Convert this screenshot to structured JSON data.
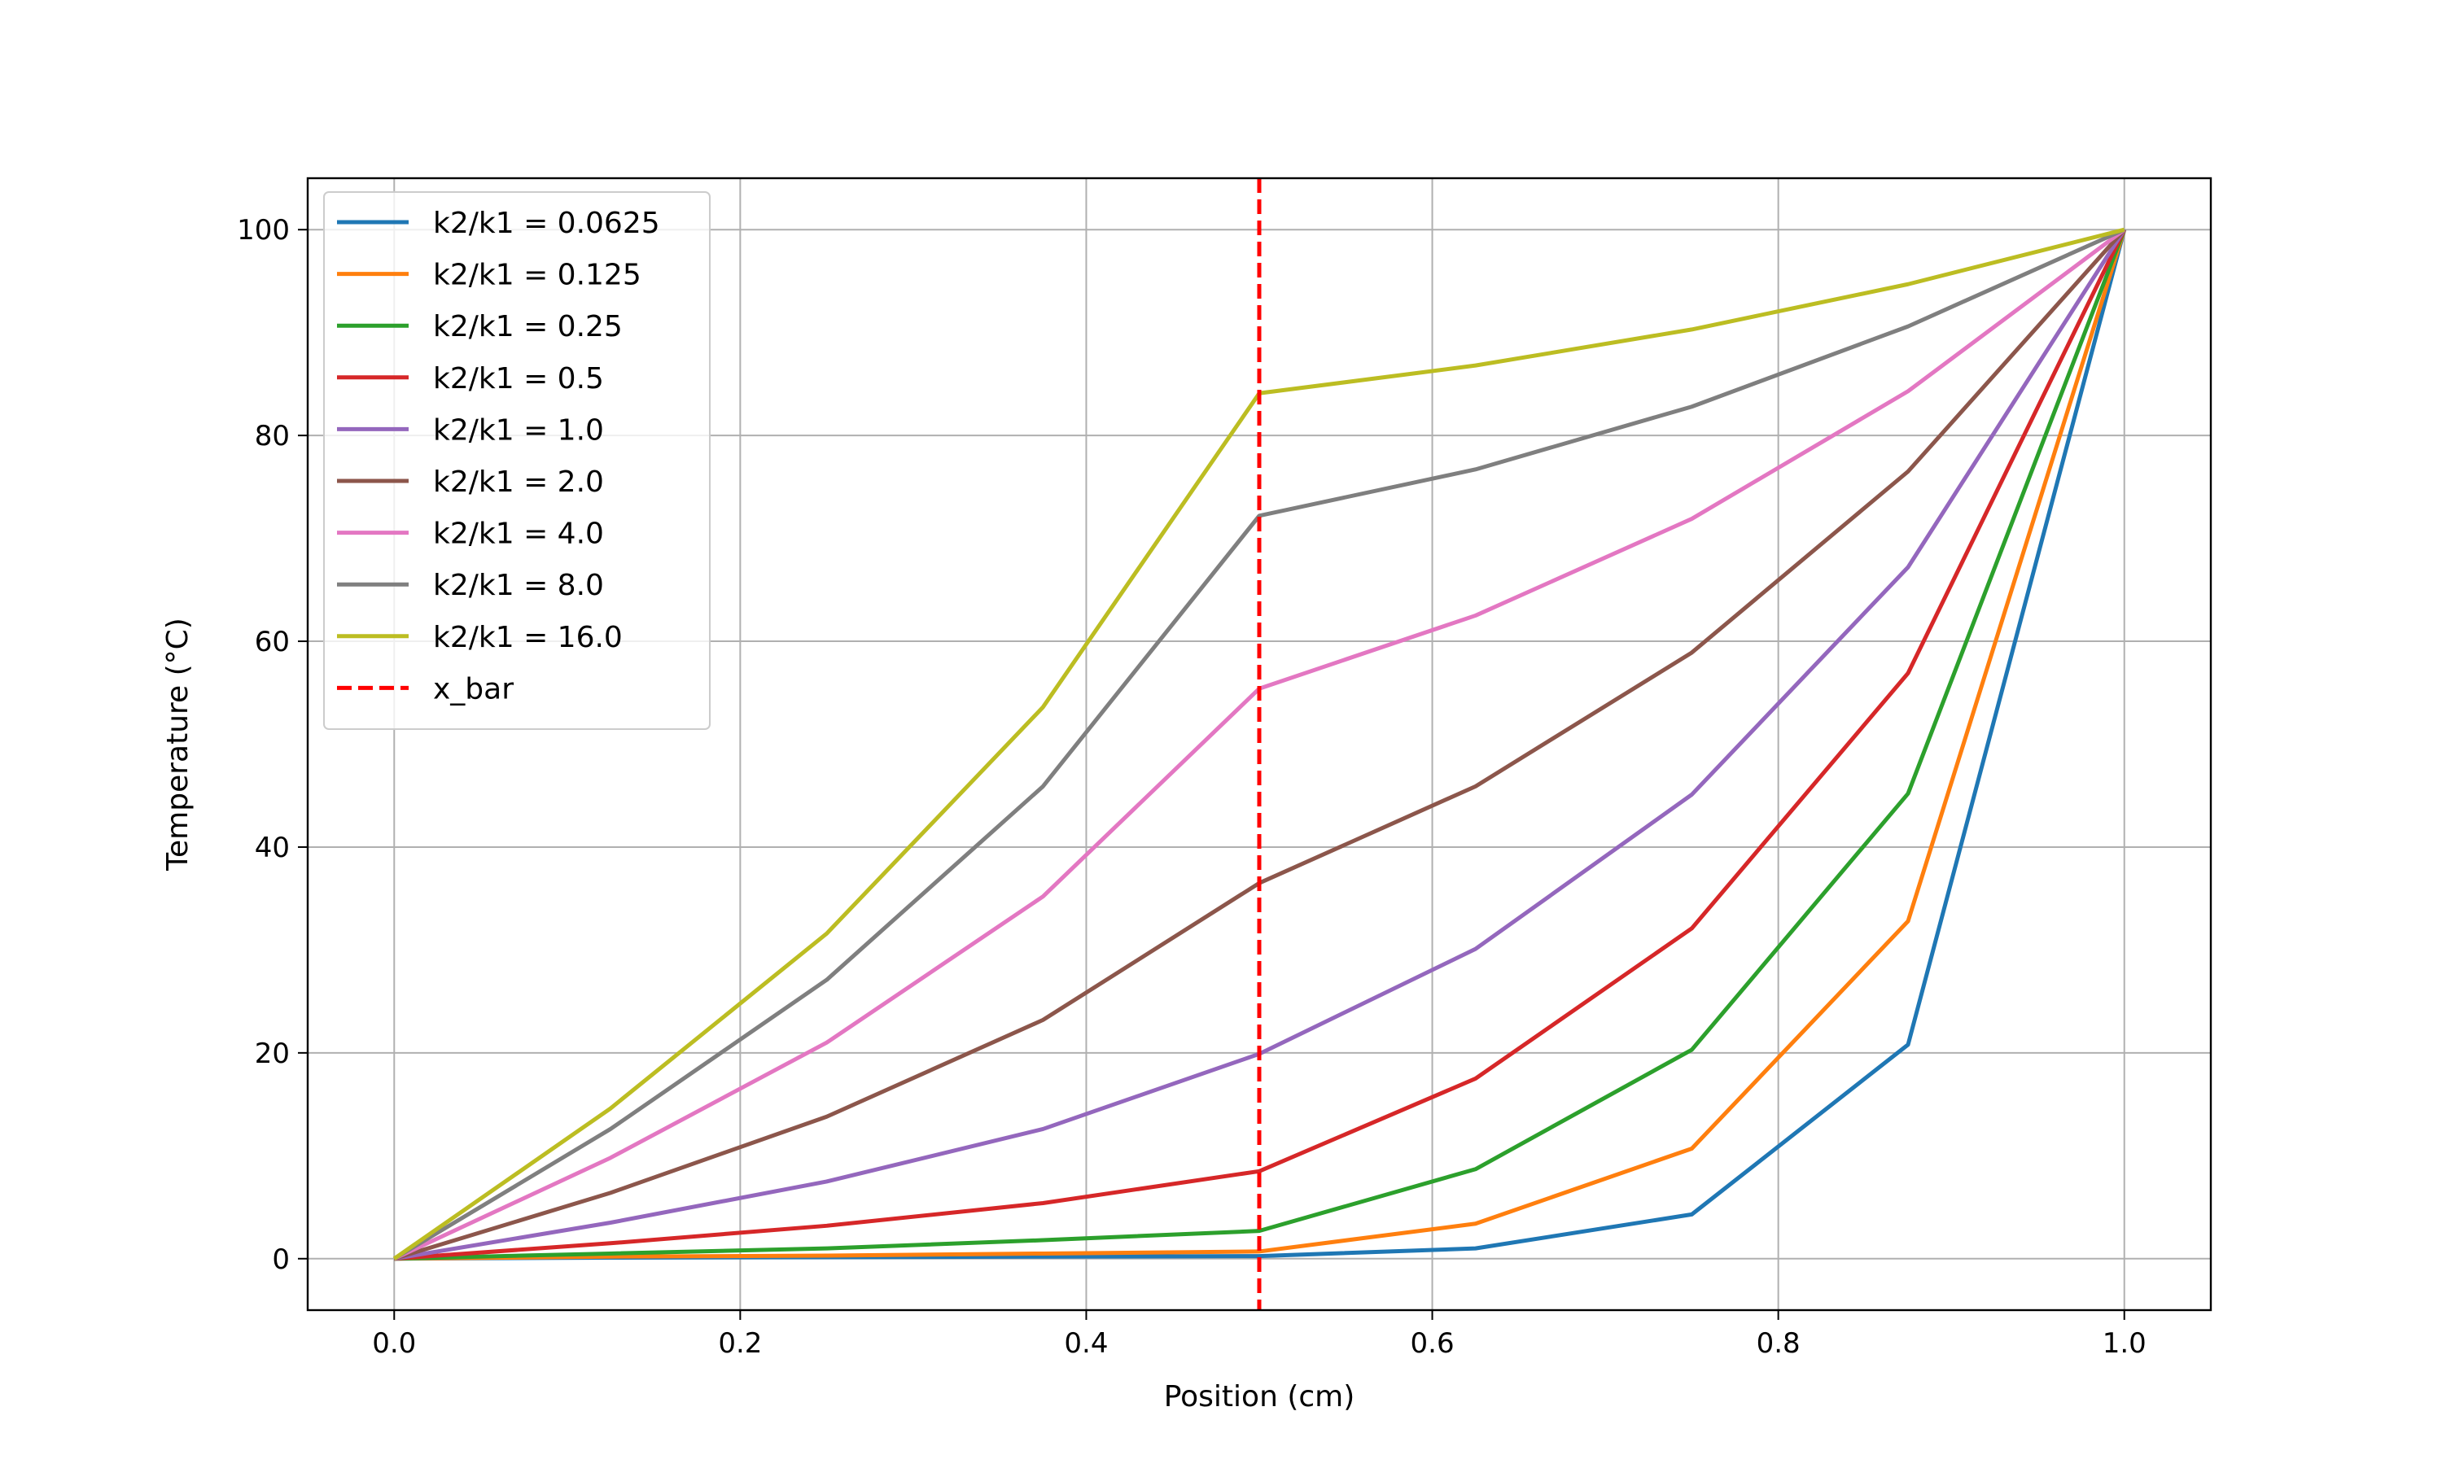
{
  "chart_data": {
    "type": "line",
    "title": "",
    "xlabel": "Position (cm)",
    "ylabel": "Temperature (°C)",
    "xlim": [
      -0.05,
      1.05
    ],
    "ylim": [
      -5,
      105
    ],
    "grid": true,
    "legend_position": "upper-left",
    "x": [
      0.0,
      0.125,
      0.25,
      0.375,
      0.5,
      0.625,
      0.75,
      0.875,
      1.0
    ],
    "xticks": [
      {
        "value": 0.0,
        "label": "0.0"
      },
      {
        "value": 0.2,
        "label": "0.2"
      },
      {
        "value": 0.4,
        "label": "0.4"
      },
      {
        "value": 0.6,
        "label": "0.6"
      },
      {
        "value": 0.8,
        "label": "0.8"
      },
      {
        "value": 1.0,
        "label": "1.0"
      }
    ],
    "yticks": [
      {
        "value": 0,
        "label": "0"
      },
      {
        "value": 20,
        "label": "20"
      },
      {
        "value": 40,
        "label": "40"
      },
      {
        "value": 60,
        "label": "60"
      },
      {
        "value": 80,
        "label": "80"
      },
      {
        "value": 100,
        "label": "100"
      }
    ],
    "series": [
      {
        "name": "k2/k1 = 0.0625",
        "color": "#1f77b4",
        "values": [
          0,
          0.1,
          0.15,
          0.2,
          0.25,
          1.0,
          4.3,
          20.8,
          100
        ]
      },
      {
        "name": "k2/k1 = 0.125",
        "color": "#ff7f0e",
        "values": [
          0,
          0.2,
          0.3,
          0.5,
          0.7,
          3.4,
          10.7,
          32.8,
          100
        ]
      },
      {
        "name": "k2/k1 = 0.25",
        "color": "#2ca02c",
        "values": [
          0,
          0.5,
          1.0,
          1.8,
          2.7,
          8.7,
          20.3,
          45.2,
          100
        ]
      },
      {
        "name": "k2/k1 = 0.5",
        "color": "#d62728",
        "values": [
          0,
          1.5,
          3.2,
          5.4,
          8.5,
          17.5,
          32.1,
          56.9,
          100
        ]
      },
      {
        "name": "k2/k1 = 1.0",
        "color": "#9467bd",
        "values": [
          0,
          3.5,
          7.5,
          12.6,
          19.9,
          30.1,
          45.1,
          67.2,
          100
        ]
      },
      {
        "name": "k2/k1 = 2.0",
        "color": "#8c564b",
        "values": [
          0,
          6.4,
          13.8,
          23.2,
          36.5,
          45.9,
          58.9,
          76.5,
          100
        ]
      },
      {
        "name": "k2/k1 = 4.0",
        "color": "#e377c2",
        "values": [
          0,
          9.8,
          21.0,
          35.2,
          55.4,
          62.5,
          71.9,
          84.3,
          100
        ]
      },
      {
        "name": "k2/k1 = 8.0",
        "color": "#7f7f7f",
        "values": [
          0,
          12.6,
          27.1,
          45.9,
          72.2,
          76.7,
          82.8,
          90.6,
          100
        ]
      },
      {
        "name": "k2/k1 = 16.0",
        "color": "#bcbd22",
        "values": [
          0,
          14.6,
          31.6,
          53.6,
          84.1,
          86.8,
          90.3,
          94.7,
          100
        ]
      }
    ],
    "vline": {
      "name": "x_bar",
      "x": 0.5,
      "color": "#ff0000",
      "style": "dashed"
    }
  }
}
